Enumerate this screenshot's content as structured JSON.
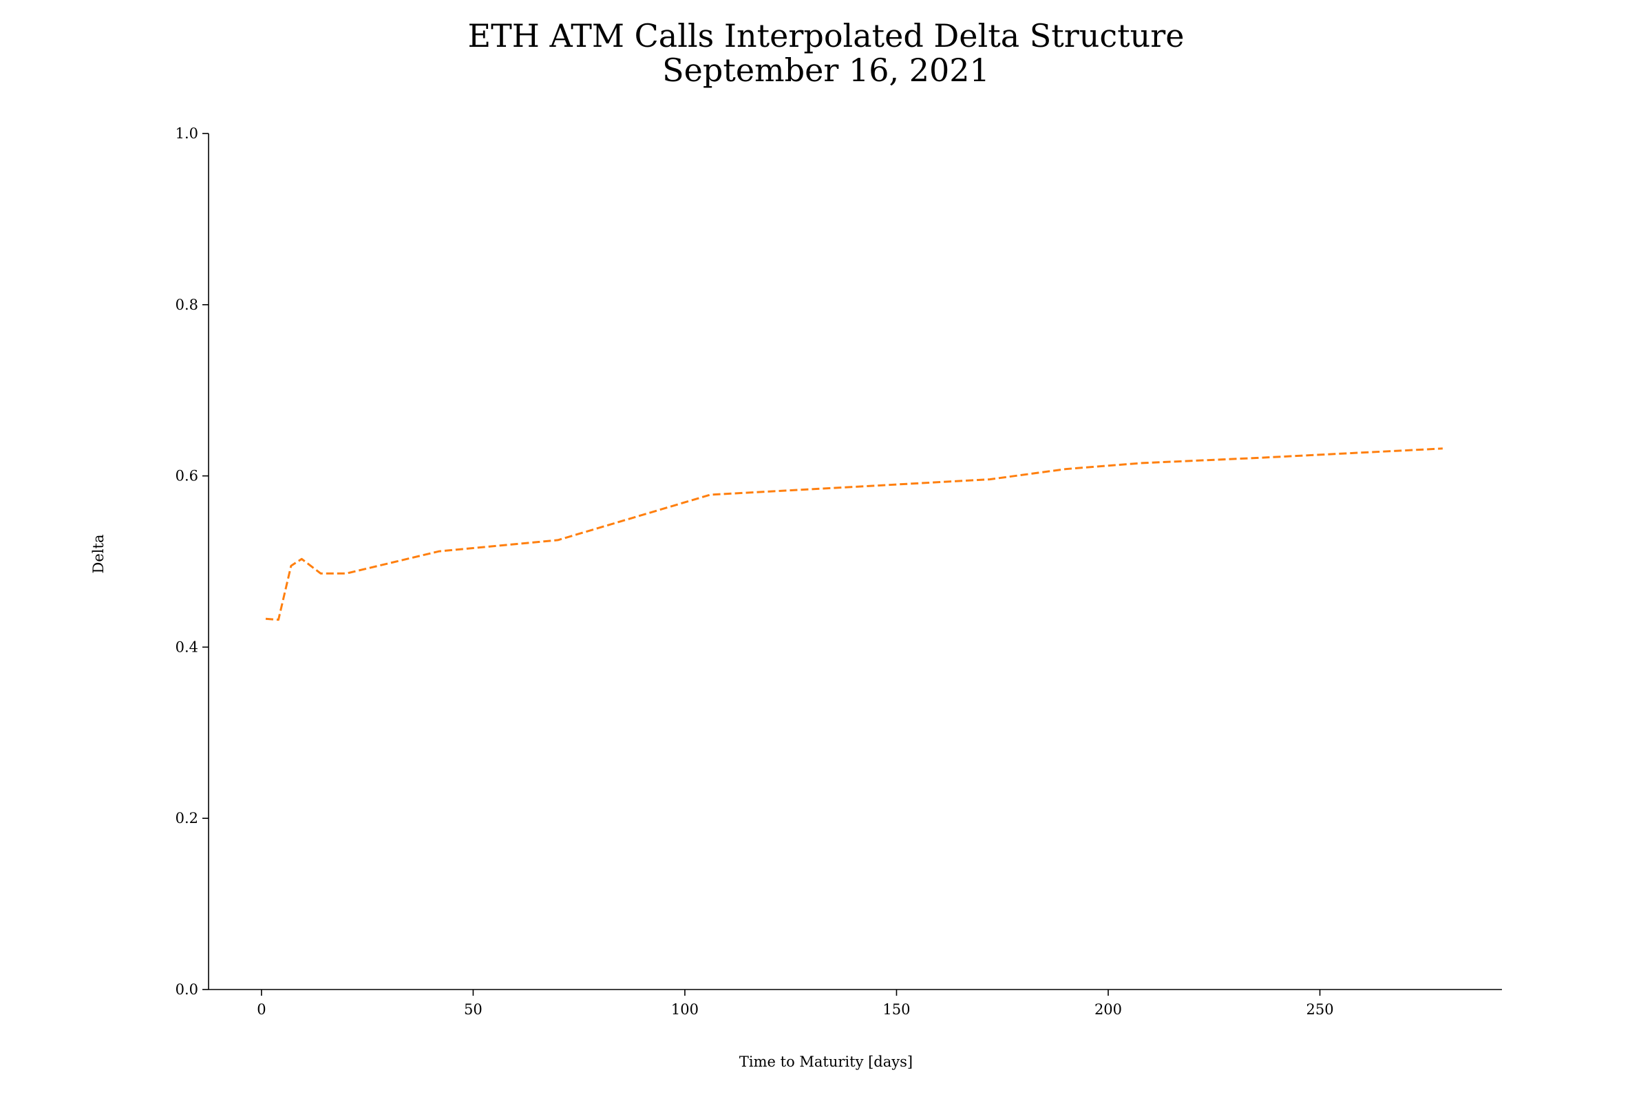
{
  "chart_data": {
    "type": "line",
    "title": "ETH ATM Calls Interpolated Delta Structure",
    "subtitle": "September 16, 2021",
    "xlabel": "Time to Maturity [days]",
    "ylabel": "Delta",
    "xlim": [
      -12.5,
      293
    ],
    "ylim": [
      0,
      1.0
    ],
    "xticks": [
      0,
      50,
      100,
      150,
      200,
      250
    ],
    "xtick_labels": [
      "0",
      "50",
      "100",
      "150",
      "200",
      "250"
    ],
    "yticks": [
      0,
      0.2,
      0.4,
      0.6,
      0.8,
      1.0
    ],
    "ytick_labels": [
      "0.0",
      "0.2",
      "0.4",
      "0.6",
      "0.8",
      "1.0"
    ],
    "grid": false,
    "series": [
      {
        "color": "#ff7f0e",
        "line_style": "dashed",
        "x": [
          1,
          4,
          7,
          9.5,
          14,
          20,
          42,
          70,
          106,
          172,
          190,
          208,
          235,
          279
        ],
        "y": [
          0.433,
          0.432,
          0.495,
          0.503,
          0.486,
          0.486,
          0.512,
          0.525,
          0.578,
          0.596,
          0.608,
          0.615,
          0.621,
          0.632
        ]
      }
    ]
  }
}
